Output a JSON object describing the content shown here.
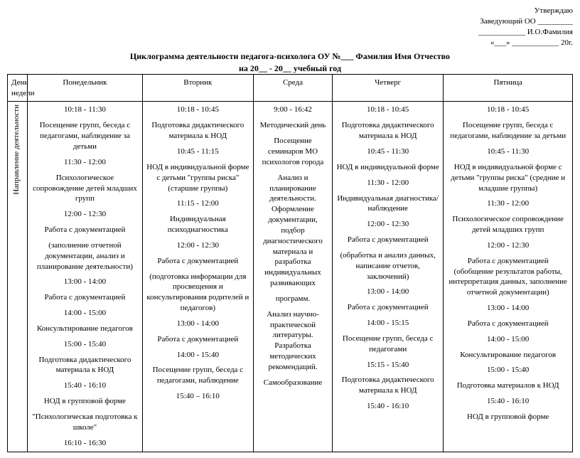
{
  "approval": {
    "line1": "Утверждаю",
    "line2": "Заведующий ОО _________",
    "line3": "____________ И.О.Фамилия",
    "line4": "«___» ____________ 20г."
  },
  "title": {
    "line1": "Циклограмма деятельности педагога-психолога ОУ №___ Фамилия Имя Отчество",
    "line2": "на 20__ - 20__ учебный год"
  },
  "headers": {
    "dayOfWeek": "День недели",
    "mon": "Понедельник",
    "tue": "Вторник",
    "wed": "Среда",
    "thu": "Четверг",
    "fri": "Пятница"
  },
  "rowHeader": "Направление деятельности",
  "cells": {
    "mon": [
      "10:18 - 11:30",
      "Посещение групп, беседа с педагогами, наблюдение за детьми",
      "11:30 - 12:00",
      "Психологическое сопровождение детей младших групп",
      "12:00 - 12:30",
      "Работа с документацией",
      "(заполнение отчетной документации, анализ и планирование деятельности)",
      "13:00 - 14:00",
      "Работа с документацией",
      "14:00 - 15:00",
      "Консультирование педагогов",
      "15:00 - 15:40",
      "Подготовка дидактического материала к НОД",
      "15:40 - 16:10",
      "НОД в групповой форме",
      "\"Психологическая подготовка к школе\"",
      "16:10 - 16:30"
    ],
    "tue": [
      "10:18 - 10:45",
      "Подготовка дидактического материала к НОД",
      "10:45 - 11:15",
      "НОД в индивидуальной форме с детьми \"группы риска\" (старшие группы)",
      "11:15 - 12:00",
      "Индивидуальная психодиагностика",
      "12:00 - 12:30",
      "Работа с документацией",
      "(подготовка информации для просвещения и консультирования родителей и педагогов)",
      "13:00 - 14:00",
      "Работа с документацией",
      "14:00 - 15:40",
      "Посещение групп, беседа с педагогами, наблюдение",
      "15:40 – 16:10"
    ],
    "wed": [
      "9:00 - 16:42",
      "Методический день",
      "Посещение семинаров МО психологов города",
      "Анализ и планирование деятельности. Оформление документации, подбор диагностического материала и разработка индивидуальных развивающих",
      "программ.",
      "Анализ научно-практической литературы. Разработка методических рекомендаций.",
      "Самообразование"
    ],
    "thu": [
      "10:18 - 10:45",
      "Подготовка дидактического материала к НОД",
      "10:45 - 11:30",
      "НОД в индивидуальной форме",
      "11:30 - 12:00",
      "Индивидуальная диагностика/наблюдение",
      "12:00 - 12:30",
      "Работа с документацией",
      "(обработка и анализ данных, написание отчетов, заключений)",
      "13:00 - 14:00",
      "Работа с документацией",
      "14:00 - 15:15",
      "Посещение групп, беседа с педагогами",
      "15:15 - 15:40",
      "Подготовка дидактического материала к НОД",
      "15:40 - 16:10"
    ],
    "fri": [
      "10:18 - 10:45",
      "Посещение групп, беседа с педагогами, наблюдение за детьми",
      "10:45 - 11:30",
      "НОД в индивидуальной форме с детьми \"группы риска\" (средние и младшие группы)",
      "11:30 - 12:00",
      "Психологическое сопровождение детей младших групп",
      "12:00 - 12:30",
      "Работа с документацией (обобщение результатов работы, интерпретация данных, заполнение отчетной документации)",
      "13:00 - 14:00",
      "Работа с документацией",
      "14:00 - 15:00",
      "Консультирование педагогов",
      "15:00 - 15:40",
      "Подготовка материалов к НОД",
      "15:40 - 16:10",
      "НОД в групповой форме"
    ]
  }
}
